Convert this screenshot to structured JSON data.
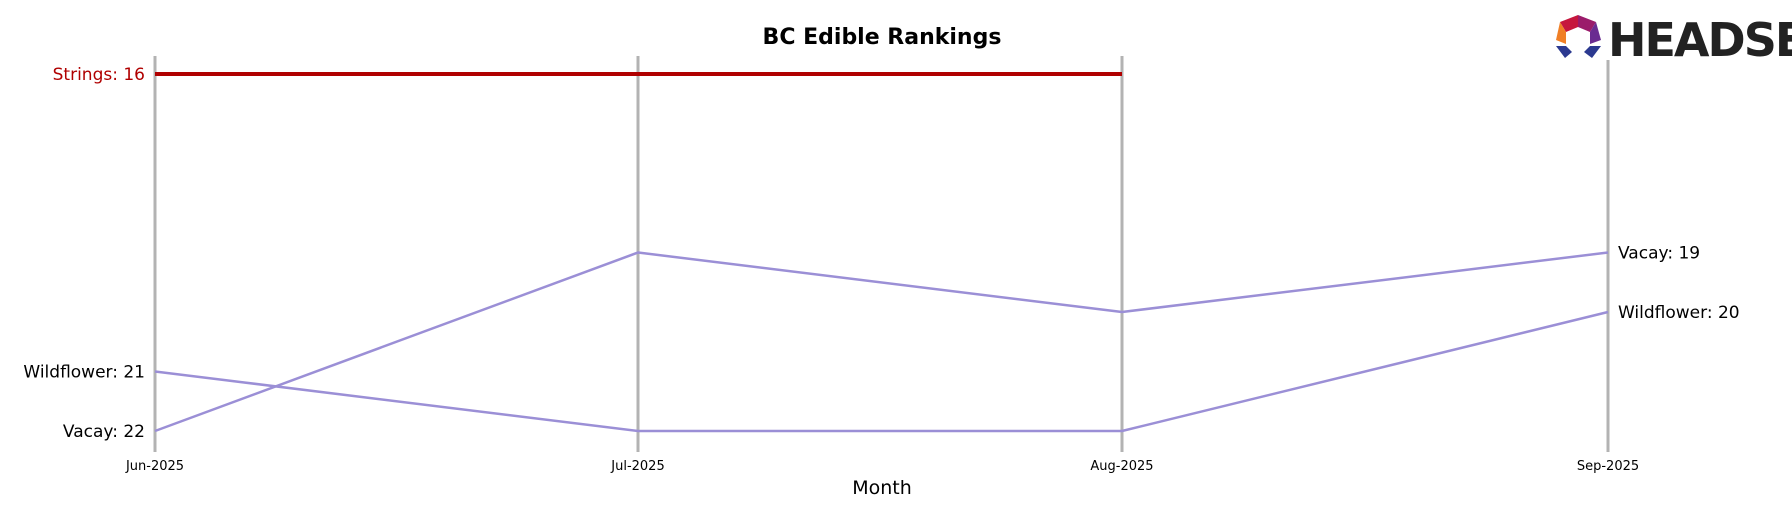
{
  "chart_data": {
    "type": "line",
    "title": "BC Edible Rankings",
    "xlabel": "Month",
    "ylabel": "",
    "categories": [
      "Jun-2025",
      "Jul-2025",
      "Aug-2025",
      "Sep-2025"
    ],
    "y_inverted": true,
    "ylim": [
      22,
      16
    ],
    "grid": "vertical lines at each month",
    "series": [
      {
        "name": "Strings",
        "color": "#b00000",
        "values": [
          16,
          16,
          16,
          null
        ],
        "start_label": "Strings: 16",
        "end_label": ""
      },
      {
        "name": "Vacay",
        "color": "#9b8fd6",
        "values": [
          22,
          19,
          20,
          19
        ],
        "start_label": "Vacay: 22",
        "end_label": "Vacay: 19"
      },
      {
        "name": "Wildflower",
        "color": "#9b8fd6",
        "values": [
          21,
          22,
          22,
          20
        ],
        "start_label": "Wildflower: 21",
        "end_label": "Wildflower: 20"
      }
    ]
  },
  "logo": {
    "text": "HEADSET"
  }
}
